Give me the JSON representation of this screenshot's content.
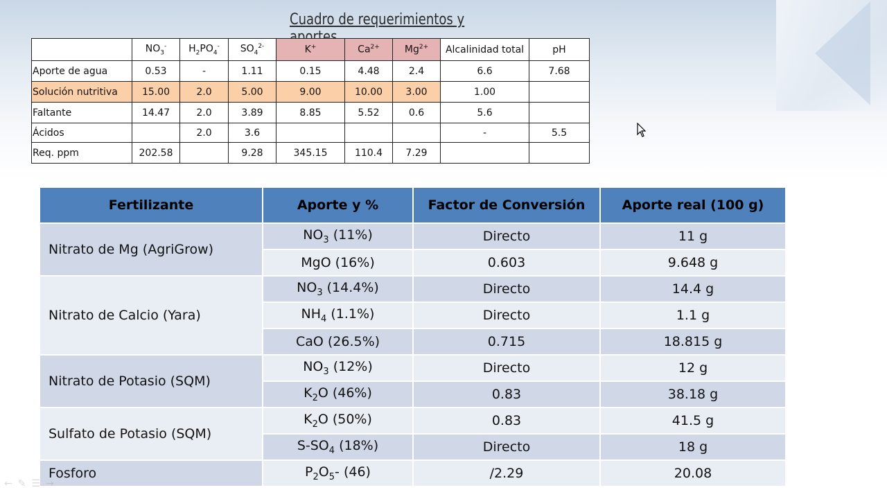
{
  "title": "Cuadro de requerimientos y aportes",
  "req_table": {
    "headers": [
      {
        "base": "NO",
        "sub": "3",
        "sup": "-"
      },
      {
        "base": "H",
        "sub": "2",
        "base2": "PO",
        "sub2": "4",
        "sup": "-"
      },
      {
        "base": "SO",
        "sub": "4",
        "sup": "2-"
      },
      {
        "base": "K",
        "sup": "+"
      },
      {
        "base": "Ca",
        "sup": "2+"
      },
      {
        "base": "Mg",
        "sup": "2+"
      },
      {
        "base": "Alcalinidad total"
      },
      {
        "base": "pH"
      }
    ],
    "rows": [
      {
        "label": "Aporte de agua",
        "values": [
          "0.53",
          "-",
          "1.11",
          "0.15",
          "4.48",
          "2.4",
          "6.6",
          "7.68"
        ]
      },
      {
        "label": "Solución nutritiva",
        "values": [
          "15.00",
          "2.0",
          "5.00",
          "9.00",
          "10.00",
          "3.00",
          "1.00",
          ""
        ]
      },
      {
        "label": "Faltante",
        "values": [
          "14.47",
          "2.0",
          "3.89",
          "8.85",
          "5.52",
          "0.6",
          "5.6",
          ""
        ]
      },
      {
        "label": "Ácidos",
        "values": [
          "",
          "2.0",
          "3.6",
          "",
          "",
          "",
          "-",
          "5.5"
        ]
      },
      {
        "label": "Req. ppm",
        "values": [
          "202.58",
          "",
          "9.28",
          "345.15",
          "110.4",
          "7.29",
          "",
          ""
        ]
      }
    ]
  },
  "fert_table": {
    "headers": [
      "Fertilizante",
      "Aporte y %",
      "Factor de Conversión",
      "Aporte real (100 g)"
    ],
    "groups": [
      {
        "name": "Nitrato de Mg (AgriGrow)",
        "rows": [
          {
            "aporte": [
              "NO",
              "3",
              " (11%)"
            ],
            "factor": "Directo",
            "real": "11 g"
          },
          {
            "aporte": [
              "MgO (16%)"
            ],
            "factor": "0.603",
            "real": "9.648 g"
          }
        ]
      },
      {
        "name": "Nitrato de Calcio (Yara)",
        "rows": [
          {
            "aporte": [
              "NO",
              "3",
              " (14.4%)"
            ],
            "factor": "Directo",
            "real": "14.4 g"
          },
          {
            "aporte": [
              "NH",
              "4",
              " (1.1%)"
            ],
            "factor": "Directo",
            "real": "1.1 g"
          },
          {
            "aporte": [
              "CaO (26.5%)"
            ],
            "factor": "0.715",
            "real": "18.815 g"
          }
        ]
      },
      {
        "name": "Nitrato de Potasio (SQM)",
        "rows": [
          {
            "aporte": [
              "NO",
              "3",
              " (12%)"
            ],
            "factor": "Directo",
            "real": "12 g"
          },
          {
            "aporte": [
              "K",
              "2",
              "O (46%)"
            ],
            "factor": "0.83",
            "real": "38.18 g"
          }
        ]
      },
      {
        "name": "Sulfato de Potasio (SQM)",
        "rows": [
          {
            "aporte": [
              "K",
              "2",
              "O (50%)"
            ],
            "factor": "0.83",
            "real": "41.5 g"
          },
          {
            "aporte": [
              "S-SO",
              "4",
              " (18%)"
            ],
            "factor": "Directo",
            "real": "18 g"
          }
        ]
      },
      {
        "name": "Fosforo",
        "rows": [
          {
            "aporte": [
              "P",
              "2",
              "O",
              "5",
              "- (46)"
            ],
            "factor": "/2.29",
            "real": "20.08"
          }
        ]
      }
    ]
  },
  "colors": {
    "header_blue": "#4f81bd",
    "band_dark": "#d0d8e8",
    "band_light": "#e9edf4",
    "pink": "#e6b3b5",
    "orange": "#fbd0a8"
  },
  "icons": [
    "mouse-cursor-icon",
    "slide-nav-icons"
  ]
}
